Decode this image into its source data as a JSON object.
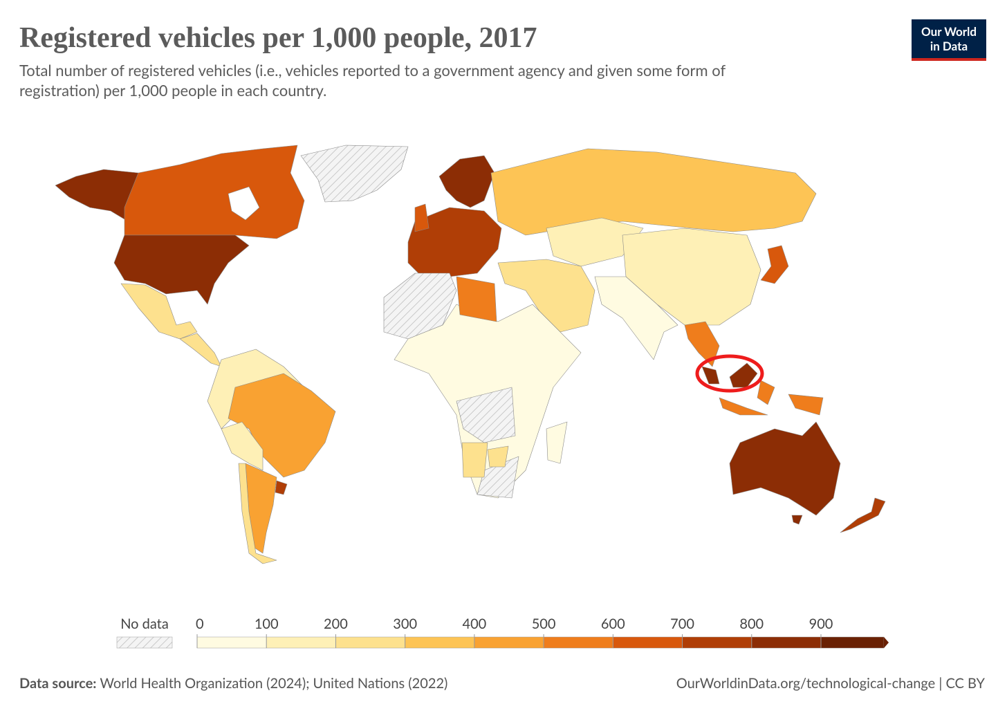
{
  "header": {
    "title": "Registered vehicles per 1,000 people, 2017",
    "subtitle_lines": [
      "Total number of registered vehicles (i.e., vehicles reported to a government agency and given some form of",
      "registration) per 1,000 people in each country."
    ],
    "logo": [
      "Our World",
      "in Data"
    ]
  },
  "legend": {
    "no_data": "No data",
    "ticks": [
      0,
      100,
      200,
      300,
      400,
      500,
      600,
      700,
      800,
      900
    ],
    "colors": [
      "#fffbe1",
      "#fef0b6",
      "#fde18e",
      "#fdc455",
      "#f9a232",
      "#ef7d1c",
      "#d8580c",
      "#b03e06",
      "#8c2d05",
      "#6a2104"
    ]
  },
  "footer": {
    "source_label": "Data source:",
    "source": "World Health Organization (2024); United Nations (2022)",
    "url": "OurWorldinData.org/technological-change | CC BY"
  }
}
